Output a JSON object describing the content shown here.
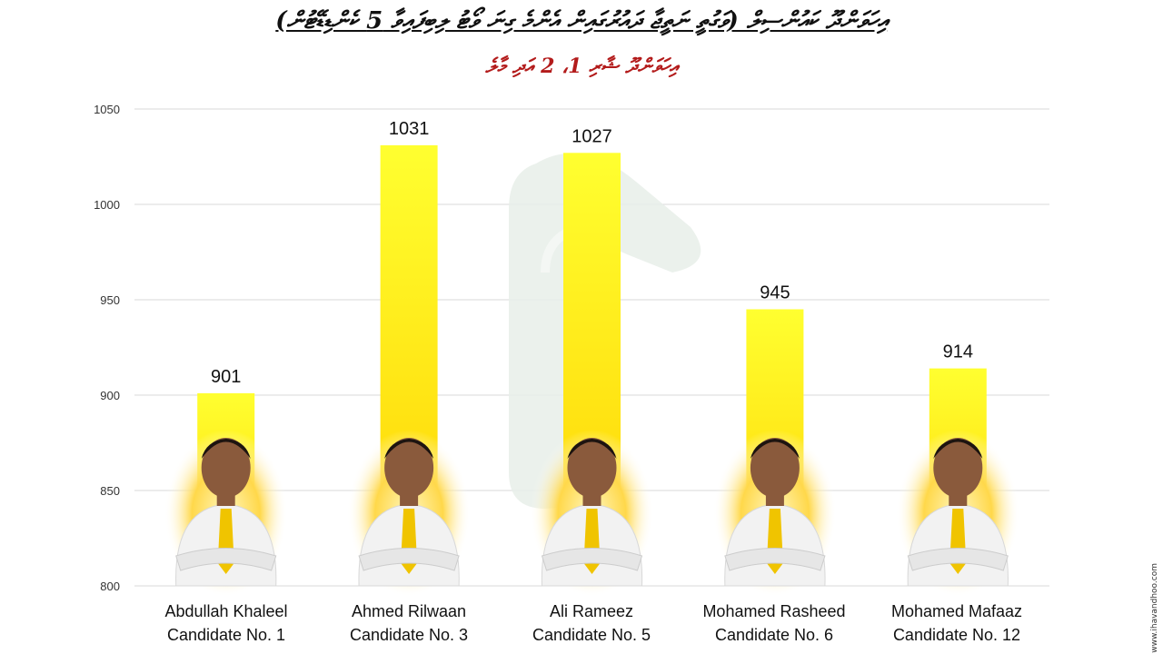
{
  "header": {
    "title": "އިހަވަންދޫ ކައުންސިލް (ވަގުތީ ނަތީޖާ ދައުރުގައިން އެންމެ ގިނަ ވޯޓު ލިބިފައިވާ 5 ކެންޑިޑޭޓުން)",
    "subtitle": "އިހަވަންދޫ ޝާރި 1، 2 އަދި މާލެ"
  },
  "watermark": "www.ihavandhoo.com",
  "colors": {
    "bar_top": "#ffff22",
    "bar_bottom": "#ffd400",
    "grid": "#d9d9d9",
    "axis_text": "#333333",
    "title_red": "#b31b1b"
  },
  "chart_data": {
    "type": "bar",
    "title": "",
    "xlabel": "",
    "ylabel": "",
    "ylim": [
      800,
      1050
    ],
    "yticks": [
      800,
      850,
      900,
      950,
      1000,
      1050
    ],
    "grid": true,
    "categories": [
      {
        "name": "Abdullah Khaleel",
        "number": "Candidate No. 1"
      },
      {
        "name": "Ahmed Rilwaan",
        "number": "Candidate No. 3"
      },
      {
        "name": "Ali Rameez",
        "number": "Candidate No. 5"
      },
      {
        "name": "Mohamed Rasheed",
        "number": "Candidate No. 6"
      },
      {
        "name": "Mohamed Mafaaz",
        "number": "Candidate No. 12"
      }
    ],
    "values": [
      901,
      1031,
      1027,
      945,
      914
    ]
  }
}
